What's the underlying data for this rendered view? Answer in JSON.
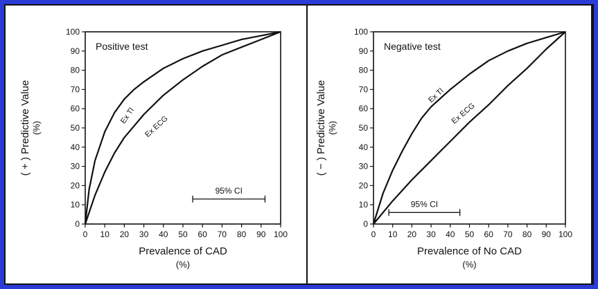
{
  "chart_data": [
    {
      "type": "line",
      "title": "Positive test",
      "xlabel": "Prevalence of CAD",
      "xlabel_unit": "(%)",
      "ylabel": "( + ) Predictive Value",
      "ylabel_unit": "(%)",
      "xlim": [
        0,
        100
      ],
      "ylim": [
        0,
        100
      ],
      "xticks": [
        0,
        10,
        20,
        30,
        40,
        50,
        60,
        70,
        80,
        90,
        100
      ],
      "yticks": [
        0,
        10,
        20,
        30,
        40,
        50,
        60,
        70,
        80,
        90,
        100
      ],
      "grid": false,
      "series": [
        {
          "name": "Ex Tl",
          "x": [
            0,
            2,
            5,
            10,
            15,
            20,
            25,
            30,
            40,
            50,
            60,
            70,
            80,
            90,
            100
          ],
          "y": [
            0,
            18,
            33,
            48,
            58,
            65,
            70,
            74,
            81,
            86,
            90,
            93,
            96,
            98,
            100
          ]
        },
        {
          "name": "Ex ECG",
          "x": [
            0,
            5,
            10,
            15,
            20,
            30,
            40,
            50,
            60,
            70,
            80,
            90,
            100
          ],
          "y": [
            0,
            15,
            27,
            37,
            45,
            57,
            67,
            75,
            82,
            88,
            92,
            96,
            100
          ]
        }
      ],
      "annotation": {
        "label": "95% CI",
        "x_range": [
          55,
          92
        ],
        "y": 13
      }
    },
    {
      "type": "line",
      "title": "Negative test",
      "xlabel": "Prevalence of No CAD",
      "xlabel_unit": "(%)",
      "ylabel": "( − ) Predictive Value",
      "ylabel_unit": "(%)",
      "xlim": [
        0,
        100
      ],
      "ylim": [
        0,
        100
      ],
      "xticks": [
        0,
        10,
        20,
        30,
        40,
        50,
        60,
        70,
        80,
        90,
        100
      ],
      "yticks": [
        0,
        10,
        20,
        30,
        40,
        50,
        60,
        70,
        80,
        90,
        100
      ],
      "grid": false,
      "series": [
        {
          "name": "Ex Tl",
          "x": [
            0,
            5,
            10,
            15,
            20,
            25,
            30,
            40,
            50,
            60,
            70,
            80,
            90,
            100
          ],
          "y": [
            0,
            16,
            28,
            38,
            47,
            55,
            61,
            70,
            78,
            85,
            90,
            94,
            97,
            100
          ]
        },
        {
          "name": "Ex ECG",
          "x": [
            0,
            10,
            20,
            30,
            40,
            50,
            60,
            70,
            80,
            90,
            100
          ],
          "y": [
            0,
            12,
            23,
            33,
            43,
            53,
            62,
            72,
            81,
            91,
            100
          ]
        }
      ],
      "annotation": {
        "label": "95% CI",
        "x_range": [
          8,
          45
        ],
        "y": 6
      }
    }
  ]
}
